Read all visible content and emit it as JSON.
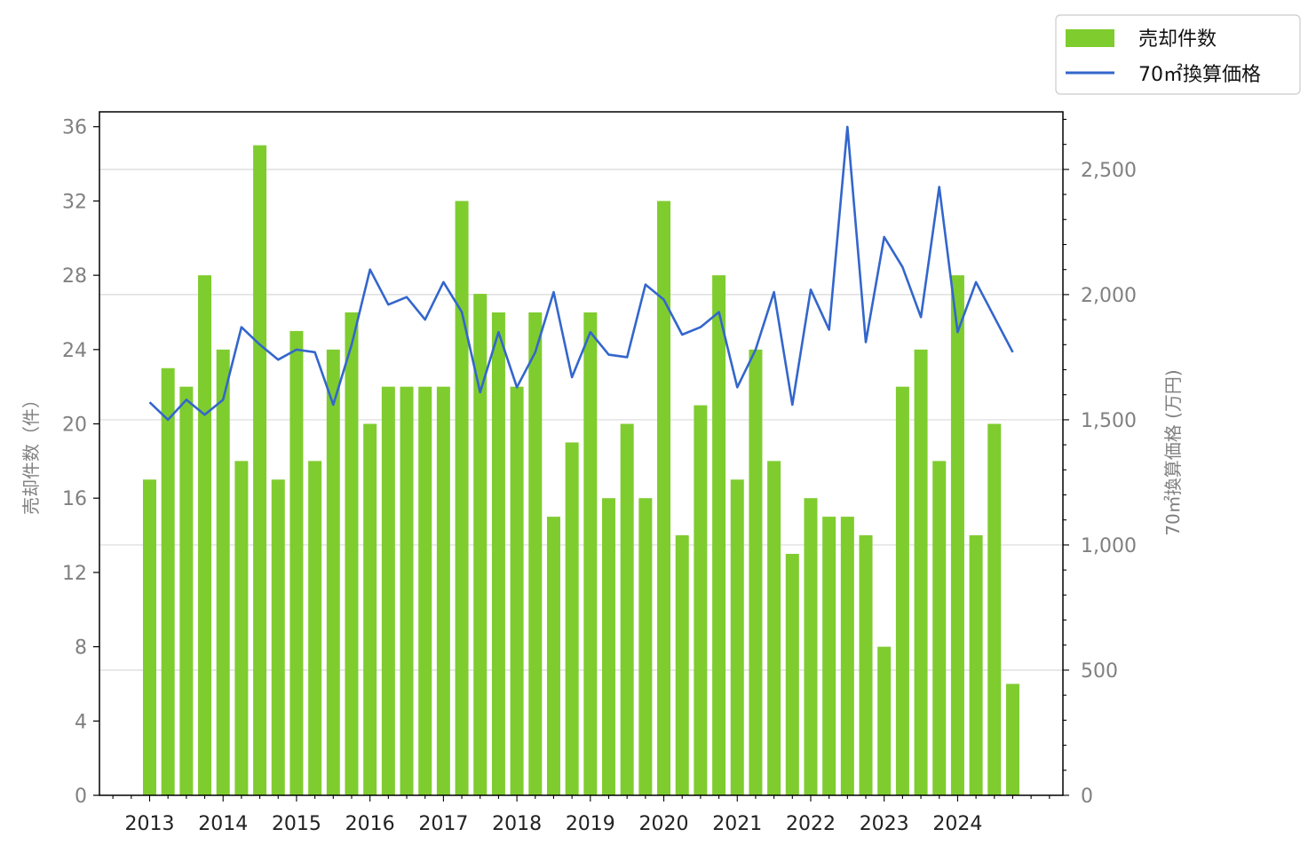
{
  "chart_data": {
    "type": "bar",
    "x_tick_labels": [
      "2013",
      "2014",
      "2015",
      "2016",
      "2017",
      "2018",
      "2019",
      "2020",
      "2021",
      "2022",
      "2023",
      "2024"
    ],
    "periods": [
      "2013Q1",
      "2013Q2",
      "2013Q3",
      "2013Q4",
      "2014Q1",
      "2014Q2",
      "2014Q3",
      "2014Q4",
      "2015Q1",
      "2015Q2",
      "2015Q3",
      "2015Q4",
      "2016Q1",
      "2016Q2",
      "2016Q3",
      "2016Q4",
      "2017Q1",
      "2017Q2",
      "2017Q3",
      "2017Q4",
      "2018Q1",
      "2018Q2",
      "2018Q3",
      "2018Q4",
      "2019Q1",
      "2019Q2",
      "2019Q3",
      "2019Q4",
      "2020Q1",
      "2020Q2",
      "2020Q3",
      "2020Q4",
      "2021Q1",
      "2021Q2",
      "2021Q3",
      "2021Q4",
      "2022Q1",
      "2022Q2",
      "2022Q3",
      "2022Q4",
      "2023Q1",
      "2023Q2",
      "2023Q3",
      "2023Q4",
      "2024Q1",
      "2024Q2",
      "2024Q3",
      "2024Q4"
    ],
    "series": [
      {
        "name": "売却件数",
        "kind": "bar",
        "axis": "left",
        "color": "#7fcc2f",
        "values": [
          17,
          23,
          22,
          28,
          24,
          18,
          35,
          17,
          25,
          18,
          24,
          26,
          20,
          22,
          22,
          22,
          22,
          32,
          27,
          26,
          22,
          26,
          15,
          19,
          26,
          16,
          20,
          16,
          32,
          14,
          21,
          28,
          17,
          24,
          18,
          13,
          16,
          15,
          15,
          14,
          8,
          22,
          24,
          18,
          28,
          14,
          20,
          6
        ]
      },
      {
        "name": "70㎡換算価格",
        "kind": "line",
        "axis": "right",
        "color": "#3366cc",
        "values": [
          1570,
          1500,
          1580,
          1520,
          1580,
          1870,
          1800,
          1740,
          1780,
          1770,
          1560,
          1800,
          2100,
          1960,
          1990,
          1900,
          2050,
          1930,
          1610,
          1850,
          1630,
          1770,
          2010,
          1670,
          1850,
          1760,
          1750,
          2040,
          1980,
          1840,
          1870,
          1930,
          1630,
          1780,
          2010,
          1560,
          2020,
          1860,
          2670,
          1810,
          2230,
          2110,
          1910,
          2430,
          1850,
          2050,
          1910,
          1770
        ]
      }
    ],
    "y_left": {
      "label": "売却件数（件）",
      "ylim": [
        0,
        36.8
      ],
      "ticks": [
        0,
        4,
        8,
        12,
        16,
        20,
        24,
        28,
        32,
        36
      ],
      "tick_labels": [
        "0",
        "4",
        "8",
        "12",
        "16",
        "20",
        "24",
        "28",
        "32",
        "36"
      ]
    },
    "y_right": {
      "label": "70㎡換算価格 (万円)",
      "ylim": [
        0,
        2730
      ],
      "ticks": [
        0,
        500,
        1000,
        1500,
        2000,
        2500
      ],
      "tick_labels": [
        "0",
        "500",
        "1,000",
        "1,500",
        "2,000",
        "2,500"
      ]
    },
    "grid": "horizontal, right axis major ticks",
    "legend_placement": "top-right, outside"
  }
}
